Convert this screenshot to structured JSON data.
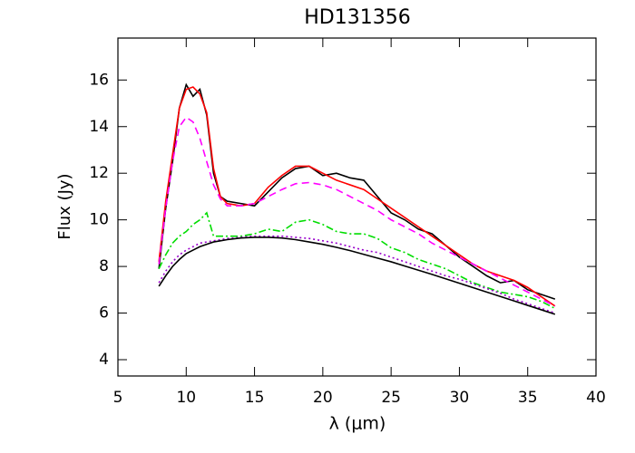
{
  "chart_data": {
    "type": "line",
    "title": "HD131356",
    "xlabel": "λ (μm)",
    "ylabel": "Flux (Jy)",
    "x": [
      8,
      8.5,
      9,
      9.5,
      10,
      10.5,
      11,
      11.5,
      12,
      12.5,
      13,
      14,
      15,
      16,
      17,
      18,
      19,
      20,
      21,
      22,
      23,
      24,
      25,
      26,
      27,
      28,
      29,
      30,
      31,
      32,
      33,
      34,
      35,
      36,
      37
    ],
    "series": [
      {
        "color": "#000000",
        "style": "solid",
        "values": [
          7.9,
          10.5,
          12.5,
          14.8,
          15.8,
          15.3,
          15.6,
          14.5,
          12.0,
          11.0,
          10.8,
          10.7,
          10.6,
          11.2,
          11.8,
          12.2,
          12.3,
          11.9,
          12.0,
          11.8,
          11.7,
          11.0,
          10.3,
          10.0,
          9.6,
          9.4,
          8.9,
          8.4,
          8.0,
          7.6,
          7.3,
          7.4,
          7.0,
          6.8,
          6.6
        ]
      },
      {
        "color": "#ff0000",
        "style": "solid",
        "values": [
          8.2,
          10.8,
          12.8,
          14.8,
          15.6,
          15.7,
          15.4,
          14.6,
          12.2,
          11.0,
          10.7,
          10.6,
          10.7,
          11.4,
          11.9,
          12.3,
          12.3,
          12.0,
          11.7,
          11.5,
          11.3,
          10.9,
          10.5,
          10.1,
          9.7,
          9.3,
          8.9,
          8.5,
          8.1,
          7.8,
          7.6,
          7.4,
          7.1,
          6.7,
          6.3
        ]
      },
      {
        "color": "#ff00ff",
        "style": "dashed",
        "values": [
          8.1,
          10.5,
          12.5,
          14.0,
          14.4,
          14.2,
          13.5,
          12.5,
          11.5,
          10.9,
          10.6,
          10.6,
          10.7,
          11.0,
          11.3,
          11.55,
          11.6,
          11.5,
          11.3,
          11.0,
          10.7,
          10.4,
          10.0,
          9.7,
          9.4,
          9.0,
          8.7,
          8.4,
          8.1,
          7.8,
          7.5,
          7.2,
          6.9,
          6.6,
          6.3
        ]
      },
      {
        "color": "#00dd00",
        "style": "dashdot",
        "values": [
          7.9,
          8.5,
          9.0,
          9.3,
          9.5,
          9.8,
          10.0,
          10.3,
          9.3,
          9.3,
          9.3,
          9.3,
          9.4,
          9.6,
          9.5,
          9.9,
          10.0,
          9.8,
          9.5,
          9.4,
          9.4,
          9.2,
          8.8,
          8.6,
          8.3,
          8.1,
          7.9,
          7.6,
          7.3,
          7.1,
          6.9,
          6.8,
          6.7,
          6.5,
          6.2
        ]
      },
      {
        "color": "#9900cc",
        "style": "dotted",
        "values": [
          7.3,
          7.8,
          8.2,
          8.5,
          8.7,
          8.85,
          9.0,
          9.05,
          9.1,
          9.15,
          9.2,
          9.25,
          9.3,
          9.3,
          9.3,
          9.25,
          9.2,
          9.1,
          9.0,
          8.85,
          8.7,
          8.6,
          8.4,
          8.2,
          8.0,
          7.8,
          7.6,
          7.45,
          7.25,
          7.05,
          6.85,
          6.6,
          6.4,
          6.2,
          6.0
        ]
      },
      {
        "color": "#000000",
        "style": "solid",
        "values": [
          7.15,
          7.6,
          8.0,
          8.3,
          8.55,
          8.7,
          8.85,
          8.95,
          9.05,
          9.1,
          9.15,
          9.22,
          9.25,
          9.25,
          9.22,
          9.15,
          9.05,
          8.95,
          8.82,
          8.68,
          8.52,
          8.36,
          8.2,
          8.02,
          7.84,
          7.66,
          7.47,
          7.28,
          7.09,
          6.9,
          6.71,
          6.52,
          6.33,
          6.14,
          5.95
        ]
      }
    ],
    "xlim": [
      5,
      40
    ],
    "xticks": [
      5,
      10,
      15,
      20,
      25,
      30,
      35,
      40
    ],
    "ylim": [
      3.3,
      17.8
    ],
    "yticks": [
      4,
      6,
      8,
      10,
      12,
      14,
      16
    ]
  }
}
